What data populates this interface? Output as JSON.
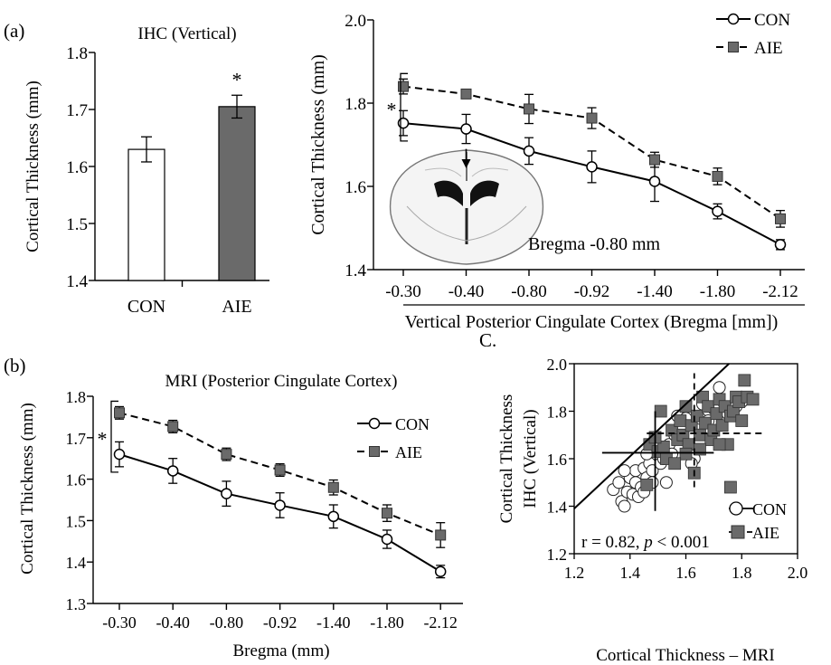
{
  "panels": {
    "a_label": "(a)",
    "b_label": "(b)",
    "c_label": "C."
  },
  "colors": {
    "con_fill": "#ffffff",
    "aie_fill": "#6a6a6a",
    "line": "#000000"
  },
  "chart_data": [
    {
      "id": "ihc-bar",
      "type": "bar",
      "title": "IHC (Vertical)",
      "ylabel": "Cortical Thickness (mm)",
      "categories": [
        "CON",
        "AIE"
      ],
      "values": [
        1.63,
        1.705
      ],
      "errors": [
        0.022,
        0.02
      ],
      "ylim": [
        1.4,
        1.8
      ],
      "yticks": [
        "1.4",
        "1.5",
        "1.6",
        "1.7",
        "1.8"
      ],
      "annotations": [
        "*"
      ]
    },
    {
      "id": "ihc-line",
      "type": "line",
      "ylabel": "Cortical Thickness (mm)",
      "xlabel": "Vertical Posterior Cingulate Cortex (Bregma [mm])",
      "categories": [
        "-0.30",
        "-0.40",
        "-0.80",
        "-0.92",
        "-1.40",
        "-1.80",
        "-2.12"
      ],
      "ylim": [
        1.4,
        2.0
      ],
      "yticks": [
        "1.4",
        "1.6",
        "1.8",
        "2.0"
      ],
      "series": [
        {
          "name": "CON",
          "values": [
            1.752,
            1.738,
            1.685,
            1.647,
            1.612,
            1.54,
            1.46
          ],
          "errors": [
            0.03,
            0.035,
            0.032,
            0.038,
            0.048,
            0.018,
            0.012
          ]
        },
        {
          "name": "AIE",
          "values": [
            1.84,
            1.822,
            1.786,
            1.764,
            1.664,
            1.624,
            1.522
          ],
          "errors": [
            0.018,
            0.0,
            0.035,
            0.025,
            0.018,
            0.02,
            0.02
          ]
        }
      ],
      "annotations": [
        "*",
        "Bregma -0.80 mm"
      ]
    },
    {
      "id": "mri-line",
      "type": "line",
      "title": "MRI (Posterior Cingulate Cortex)",
      "ylabel": "Cortical Thickness (mm)",
      "xlabel": "Bregma (mm)",
      "categories": [
        "-0.30",
        "-0.40",
        "-0.80",
        "-0.92",
        "-1.40",
        "-1.80",
        "-2.12"
      ],
      "ylim": [
        1.3,
        1.8
      ],
      "yticks": [
        "1.3",
        "1.4",
        "1.5",
        "1.6",
        "1.7",
        "1.8"
      ],
      "series": [
        {
          "name": "CON",
          "values": [
            1.66,
            1.62,
            1.565,
            1.537,
            1.51,
            1.455,
            1.377
          ],
          "errors": [
            0.03,
            0.03,
            0.03,
            0.03,
            0.028,
            0.022,
            0.015
          ]
        },
        {
          "name": "AIE",
          "values": [
            1.76,
            1.727,
            1.66,
            1.622,
            1.58,
            1.518,
            1.465
          ],
          "errors": [
            0.015,
            0.015,
            0.015,
            0.015,
            0.018,
            0.02,
            0.03
          ]
        }
      ],
      "annotations": [
        "*"
      ]
    },
    {
      "id": "scatter",
      "type": "scatter",
      "xlabel": "Cortical Thickness – MRI",
      "ylabel_lines": [
        "Cortical Thickness",
        "IHC (Vertical)"
      ],
      "xlim": [
        1.2,
        2.0
      ],
      "ylim": [
        1.2,
        2.0
      ],
      "xticks": [
        "1.2",
        "1.4",
        "1.6",
        "1.8",
        "2.0"
      ],
      "yticks": [
        "1.2",
        "1.4",
        "1.6",
        "1.8",
        "2.0"
      ],
      "annotation": "r = 0.82, p < 0.001",
      "annotation_parts": [
        "r = 0.82, ",
        "p",
        " < 0.001"
      ],
      "fit_line": {
        "slope": 1.1,
        "intercept": 0.07
      },
      "series": [
        {
          "name": "CON",
          "points": [
            [
              1.34,
              1.47
            ],
            [
              1.36,
              1.5
            ],
            [
              1.37,
              1.42
            ],
            [
              1.38,
              1.4
            ],
            [
              1.39,
              1.46
            ],
            [
              1.4,
              1.52
            ],
            [
              1.41,
              1.45
            ],
            [
              1.42,
              1.5
            ],
            [
              1.42,
              1.55
            ],
            [
              1.43,
              1.44
            ],
            [
              1.44,
              1.48
            ],
            [
              1.45,
              1.56
            ],
            [
              1.45,
              1.46
            ],
            [
              1.46,
              1.52
            ],
            [
              1.47,
              1.58
            ],
            [
              1.48,
              1.5
            ],
            [
              1.48,
              1.55
            ],
            [
              1.5,
              1.63
            ],
            [
              1.51,
              1.58
            ],
            [
              1.52,
              1.6
            ],
            [
              1.53,
              1.5
            ],
            [
              1.54,
              1.66
            ],
            [
              1.56,
              1.7
            ],
            [
              1.57,
              1.78
            ],
            [
              1.58,
              1.73
            ],
            [
              1.6,
              1.77
            ],
            [
              1.62,
              1.7
            ],
            [
              1.63,
              1.6
            ],
            [
              1.65,
              1.77
            ],
            [
              1.66,
              1.83
            ],
            [
              1.68,
              1.76
            ],
            [
              1.7,
              1.81
            ],
            [
              1.72,
              1.9
            ],
            [
              1.75,
              1.79
            ],
            [
              1.78,
              1.82
            ],
            [
              1.8,
              1.84
            ],
            [
              1.62,
              1.58
            ],
            [
              1.55,
              1.62
            ],
            [
              1.38,
              1.55
            ],
            [
              1.46,
              1.62
            ]
          ]
        },
        {
          "name": "AIE",
          "points": [
            [
              1.46,
              1.49
            ],
            [
              1.47,
              1.66
            ],
            [
              1.5,
              1.63
            ],
            [
              1.51,
              1.8
            ],
            [
              1.53,
              1.6
            ],
            [
              1.55,
              1.72
            ],
            [
              1.57,
              1.68
            ],
            [
              1.58,
              1.76
            ],
            [
              1.59,
              1.7
            ],
            [
              1.6,
              1.82
            ],
            [
              1.61,
              1.66
            ],
            [
              1.62,
              1.74
            ],
            [
              1.63,
              1.54
            ],
            [
              1.64,
              1.78
            ],
            [
              1.65,
              1.7
            ],
            [
              1.66,
              1.86
            ],
            [
              1.67,
              1.75
            ],
            [
              1.68,
              1.82
            ],
            [
              1.69,
              1.68
            ],
            [
              1.7,
              1.72
            ],
            [
              1.71,
              1.79
            ],
            [
              1.72,
              1.85
            ],
            [
              1.73,
              1.74
            ],
            [
              1.74,
              1.82
            ],
            [
              1.75,
              1.66
            ],
            [
              1.76,
              1.78
            ],
            [
              1.77,
              1.8
            ],
            [
              1.78,
              1.86
            ],
            [
              1.79,
              1.84
            ],
            [
              1.8,
              1.76
            ],
            [
              1.82,
              1.86
            ],
            [
              1.84,
              1.85
            ],
            [
              1.81,
              1.93
            ],
            [
              1.76,
              1.48
            ],
            [
              1.6,
              1.62
            ],
            [
              1.56,
              1.58
            ],
            [
              1.52,
              1.65
            ],
            [
              1.65,
              1.64
            ],
            [
              1.72,
              1.66
            ],
            [
              1.49,
              1.69
            ]
          ]
        }
      ],
      "group_means": [
        {
          "name": "CON",
          "x": 1.49,
          "y": 1.625,
          "x_span": [
            1.3,
            1.7
          ],
          "y_span": [
            1.38,
            1.8
          ]
        },
        {
          "name": "AIE",
          "x": 1.63,
          "y": 1.707,
          "x_span": [
            1.46,
            1.88
          ],
          "y_span": [
            1.48,
            1.96
          ]
        }
      ]
    }
  ]
}
